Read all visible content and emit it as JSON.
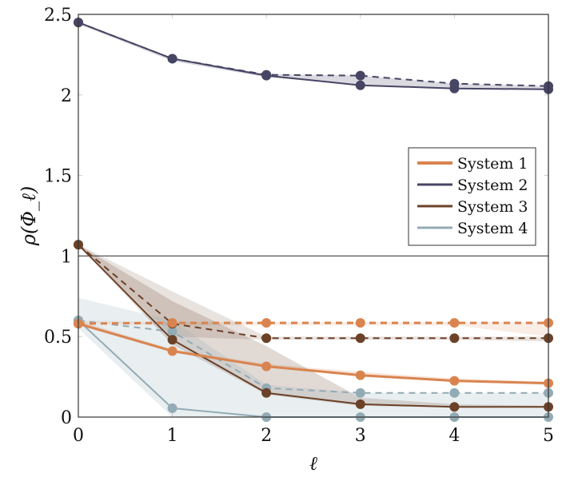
{
  "chart_data": {
    "type": "line",
    "xlabel": "ℓ",
    "ylabel": "ρ(Φ_ℓ)",
    "xlim": [
      0,
      5
    ],
    "ylim": [
      0,
      2.5
    ],
    "xticks": [
      "0",
      "1",
      "2",
      "3",
      "4",
      "5"
    ],
    "yticks": [
      "0",
      "0.5",
      "1",
      "1.5",
      "2",
      "2.5"
    ],
    "reference_line_y": 1,
    "legend_position": "right-middle",
    "x": [
      0,
      1,
      2,
      3,
      4,
      5
    ],
    "series": [
      {
        "name": "System 1",
        "color": "#D9844F",
        "solid": [
          0.58,
          0.41,
          0.315,
          0.26,
          0.225,
          0.21
        ],
        "dashed": [
          0.58,
          0.585,
          0.585,
          0.585,
          0.585,
          0.585
        ],
        "band_low": [
          0.57,
          0.4,
          0.31,
          0.25,
          0.22,
          0.2
        ],
        "band_high": [
          0.6,
          0.42,
          0.33,
          0.28,
          0.24,
          0.22
        ],
        "dashed_band_low": [
          0.58,
          0.57,
          0.57,
          0.57,
          0.57,
          0.5
        ],
        "dashed_band_high": [
          0.6,
          0.59,
          0.59,
          0.59,
          0.59,
          0.59
        ]
      },
      {
        "name": "System 2",
        "color": "#474564",
        "solid": [
          2.45,
          2.225,
          2.12,
          2.06,
          2.04,
          2.035
        ],
        "dashed": [
          2.45,
          2.225,
          2.125,
          2.12,
          2.07,
          2.055
        ],
        "band_low": [
          2.44,
          2.21,
          2.11,
          2.06,
          2.04,
          2.035
        ],
        "band_high": [
          2.45,
          2.23,
          2.13,
          2.12,
          2.07,
          2.055
        ]
      },
      {
        "name": "System 3",
        "color": "#6B4128",
        "solid": [
          1.07,
          0.48,
          0.15,
          0.08,
          0.063,
          0.063
        ],
        "dashed": [
          1.07,
          0.58,
          0.49,
          0.49,
          0.49,
          0.49
        ],
        "band_low": [
          1.07,
          0.45,
          0.14,
          0.07,
          0.06,
          0.06
        ],
        "band_high": [
          1.07,
          0.72,
          0.44,
          0.12,
          0.08,
          0.07
        ],
        "dashed_band_low": [
          1.07,
          0.5,
          0.48,
          0.48,
          0.48,
          0.47
        ],
        "dashed_band_high": [
          1.07,
          0.78,
          0.5,
          0.5,
          0.5,
          0.5
        ]
      },
      {
        "name": "System 4",
        "color": "#93ABB5",
        "solid": [
          0.6,
          0.055,
          0,
          0,
          0,
          0
        ],
        "dashed": [
          0.6,
          0.53,
          0.18,
          0.15,
          0.15,
          0.15
        ],
        "band_low": [
          0.55,
          0.0,
          0.0,
          0.0,
          0.0,
          0.0
        ],
        "band_high": [
          0.74,
          0.6,
          0.2,
          0.15,
          0.15,
          0.15
        ]
      }
    ]
  }
}
